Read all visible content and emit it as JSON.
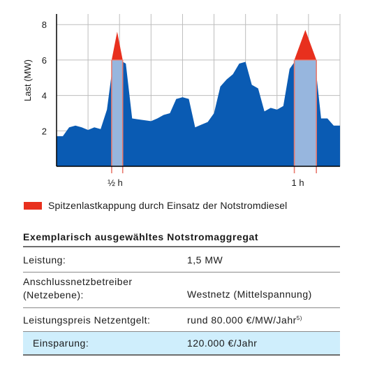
{
  "chart_data": {
    "type": "area",
    "ylabel": "Last (MW)",
    "ylim": [
      0,
      8.6
    ],
    "yticks": [
      2,
      4,
      6,
      8
    ],
    "x_time_labels": [
      {
        "label": "½ h",
        "x": 17.5
      },
      {
        "label": "1 h",
        "x": 75.5
      }
    ],
    "x": [
      0,
      2,
      4,
      6,
      8,
      10,
      12,
      14,
      16,
      18,
      20,
      22,
      24,
      26,
      28,
      30,
      32,
      34,
      36,
      38,
      40,
      42,
      44,
      46,
      48,
      50,
      52,
      54,
      56,
      58,
      60,
      62,
      64,
      66,
      68,
      70,
      72,
      74,
      76,
      78,
      80,
      82,
      84,
      86,
      88,
      90
    ],
    "series": [
      {
        "values": [
          1.7,
          1.7,
          2.2,
          2.3,
          2.2,
          2.05,
          2.2,
          2.1,
          3.2,
          5.9,
          6.0,
          5.8,
          2.7,
          2.65,
          2.6,
          2.55,
          2.7,
          2.9,
          3.0,
          3.8,
          3.9,
          3.8,
          2.2,
          2.35,
          2.5,
          3.0,
          4.5,
          4.9,
          5.2,
          5.8,
          5.9,
          4.6,
          4.4,
          3.1,
          3.3,
          3.2,
          3.4,
          5.5,
          6.0,
          6.0,
          6.0,
          6.0,
          2.7,
          2.7,
          2.3,
          2.3
        ],
        "color": "#0a5bb3"
      }
    ],
    "peak_shaving": [
      {
        "x_range": [
          17.5,
          21
        ],
        "cap_mw": 6.0,
        "peak_mw": 7.6
      },
      {
        "x_range": [
          75.5,
          82.5
        ],
        "cap_mw": 6.0,
        "peak_mw": 7.7
      }
    ],
    "colors": {
      "area": "#0a5bb3",
      "capped_band": "#97b6de",
      "peak": "#e8301e",
      "marker": "#e87a6e",
      "grid": "#bdbdbd"
    }
  },
  "legend": {
    "label": "Spitzenlastkappung durch Einsatz der Notstromdiesel"
  },
  "table": {
    "title": "Exemplarisch ausgewähltes Notstromaggregat",
    "rows": [
      {
        "label": "Leistung:",
        "value": "1,5 MW"
      },
      {
        "label_line1": "Anschlussnetzbetreiber",
        "label_line2": "(Netzebene):",
        "value": "Westnetz (Mittelspannung)"
      },
      {
        "label": "Leistungspreis Netzentgelt:",
        "value": "rund 80.000 €/MW/Jahr",
        "footnote": "5)"
      },
      {
        "label": "Einsparung:",
        "value": "120.000 €/Jahr"
      }
    ]
  }
}
